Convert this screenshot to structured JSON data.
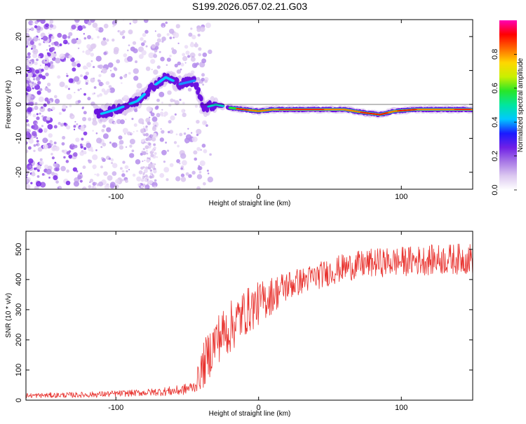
{
  "title": "S199.2026.057.02.21.G03",
  "chart_data": [
    {
      "type": "heatmap",
      "title": "S199.2026.057.02.21.G03",
      "xlabel": "Height of straight line (km)",
      "ylabel": "Frequency (Hz)",
      "xlim": [
        -163,
        150
      ],
      "ylim": [
        -25,
        25
      ],
      "xticks": [
        -100,
        0,
        100
      ],
      "yticks": [
        -20,
        -10,
        0,
        10,
        20
      ],
      "colorbar": {
        "label": "Normalized spectral amplitude",
        "range": [
          0.0,
          1.0
        ],
        "ticks": [
          "0.0",
          "0.2",
          "0.4",
          "0.6",
          "0.8"
        ],
        "colors": [
          "#ffffff",
          "#dcc8f0",
          "#a878e6",
          "#7020e6",
          "#1a1aff",
          "#00c8ff",
          "#00e6a0",
          "#28e628",
          "#c8f000",
          "#ffd700",
          "#ff6a00",
          "#ff0000",
          "#ff00b4"
        ]
      },
      "ridge": {
        "points": [
          [
            -112,
            -3
          ],
          [
            -100,
            -1.5
          ],
          [
            -85,
            1
          ],
          [
            -75,
            5
          ],
          [
            -65,
            8
          ],
          [
            -55,
            6
          ],
          [
            -45,
            7
          ],
          [
            -38,
            -1
          ],
          [
            -30,
            0
          ],
          [
            -20,
            -1
          ],
          [
            -10,
            -1.5
          ],
          [
            0,
            -2
          ],
          [
            10,
            -1.5
          ],
          [
            30,
            -1.5
          ],
          [
            60,
            -1.5
          ],
          [
            75,
            -2.5
          ],
          [
            85,
            -3
          ],
          [
            95,
            -2
          ],
          [
            110,
            -1.5
          ],
          [
            130,
            -1.5
          ],
          [
            148,
            -1.5
          ]
        ]
      }
    },
    {
      "type": "line",
      "xlabel": "Height of straight line (km)",
      "ylabel": "SNR (10 * v/v)",
      "xlim": [
        -163,
        150
      ],
      "ylim": [
        0,
        560
      ],
      "xticks": [
        -100,
        0,
        100
      ],
      "yticks": [
        0,
        100,
        200,
        300,
        400,
        500
      ],
      "color": "#e8322e",
      "trend": [
        [
          -163,
          15
        ],
        [
          -120,
          18
        ],
        [
          -80,
          25
        ],
        [
          -55,
          32
        ],
        [
          -45,
          45
        ],
        [
          -38,
          120
        ],
        [
          -30,
          200
        ],
        [
          -20,
          240
        ],
        [
          -10,
          290
        ],
        [
          0,
          320
        ],
        [
          10,
          350
        ],
        [
          20,
          380
        ],
        [
          40,
          410
        ],
        [
          60,
          440
        ],
        [
          80,
          455
        ],
        [
          100,
          460
        ],
        [
          120,
          465
        ],
        [
          150,
          470
        ]
      ],
      "noise": [
        [
          -163,
          10
        ],
        [
          -80,
          14
        ],
        [
          -45,
          25
        ],
        [
          -38,
          100
        ],
        [
          -20,
          110
        ],
        [
          0,
          90
        ],
        [
          30,
          55
        ],
        [
          80,
          60
        ],
        [
          150,
          65
        ]
      ]
    }
  ]
}
